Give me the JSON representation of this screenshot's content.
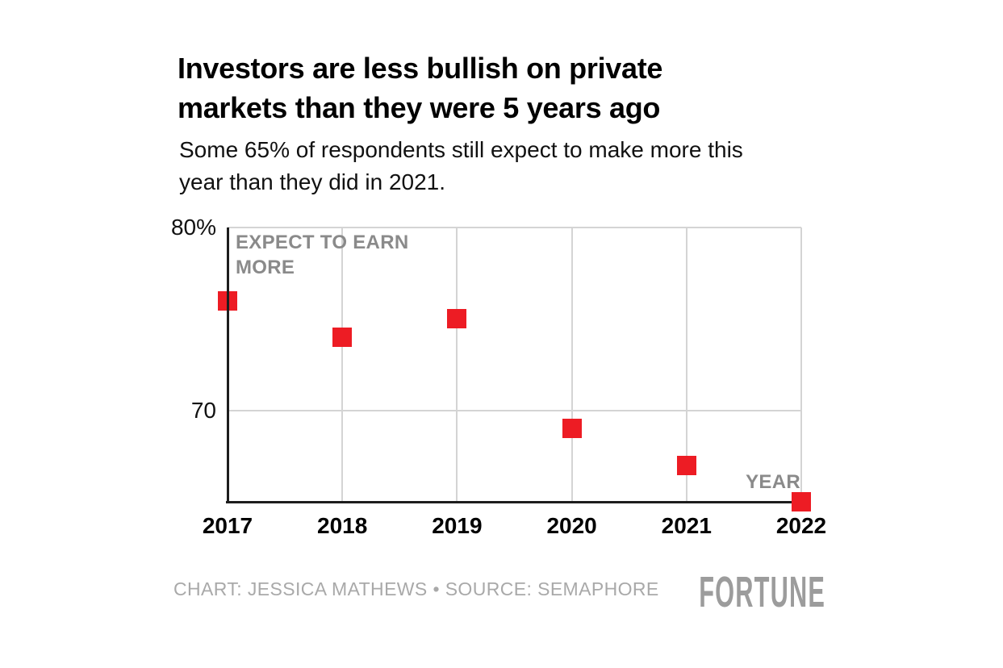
{
  "header": {
    "title": "Investors are less bullish on private\nmarkets than they were 5 years ago",
    "subtitle": "Some 65% of respondents still expect to make more this\nyear than they did in 2021."
  },
  "chart_data": {
    "type": "scatter",
    "marker_shape": "square",
    "categories": [
      "2017",
      "2018",
      "2019",
      "2020",
      "2021",
      "2022"
    ],
    "values": [
      76,
      74,
      75,
      69,
      67,
      65
    ],
    "series_label": "EXPECT TO EARN\nMORE",
    "x_axis_annotation": "YEAR",
    "y_ticks": [
      {
        "value": 80,
        "label": "80%"
      },
      {
        "value": 70,
        "label": "70"
      }
    ],
    "ylim": [
      65,
      80
    ],
    "grid": true,
    "marker_color": "#ED1C24",
    "axis_color": "#1d1d1d",
    "gridline_color": "#d4d4d4"
  },
  "footer": {
    "credit": "CHART: JESSICA MATHEWS • SOURCE: SEMAPHORE",
    "logo": "FORTUNE"
  }
}
